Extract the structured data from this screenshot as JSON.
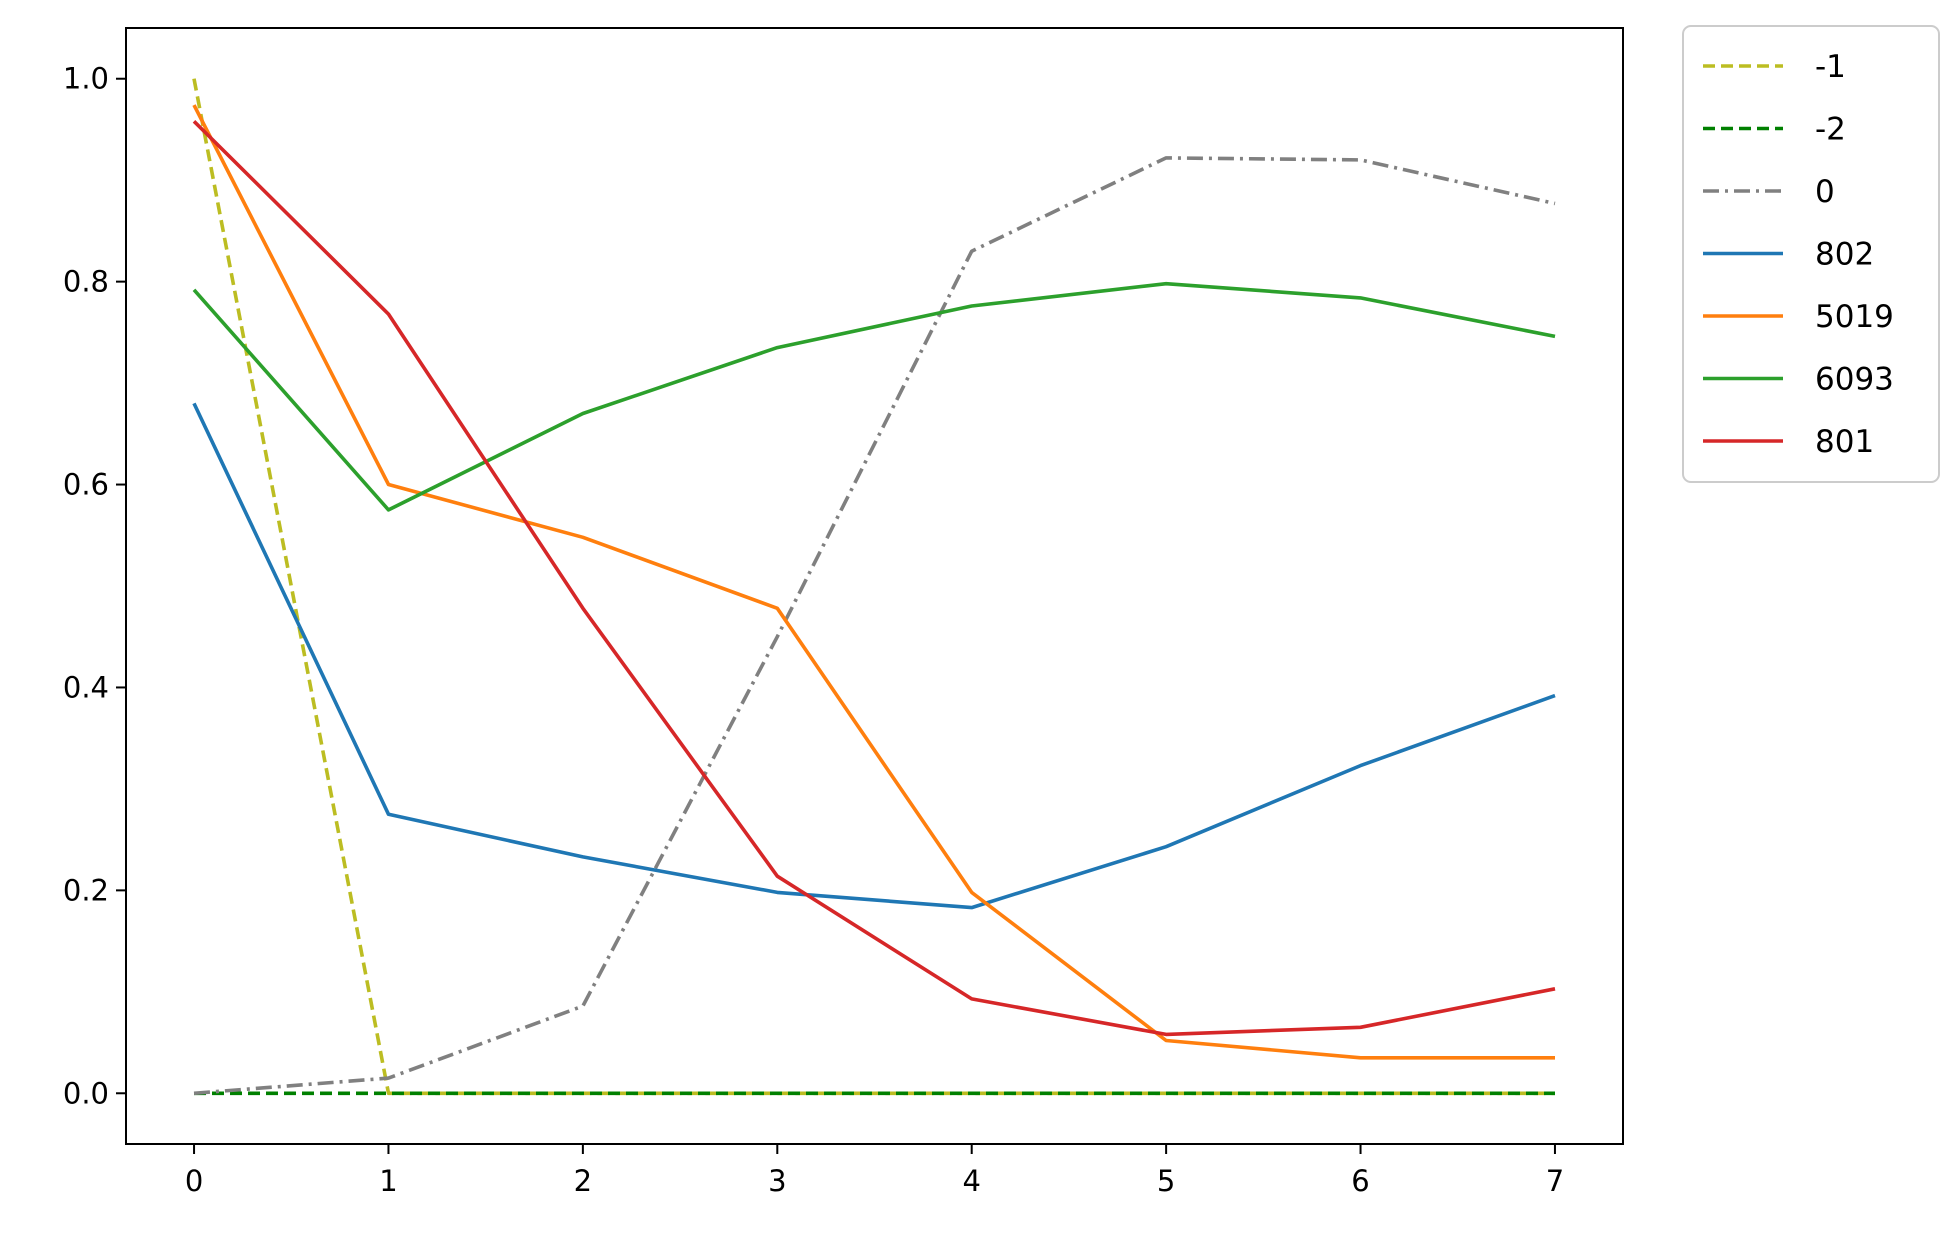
{
  "chart_data": {
    "type": "line",
    "title": "",
    "xlabel": "",
    "ylabel": "",
    "x": [
      0,
      1,
      2,
      3,
      4,
      5,
      6,
      7
    ],
    "xlim": [
      -0.35,
      7.35
    ],
    "ylim": [
      -0.05,
      1.05
    ],
    "xticks": [
      0,
      1,
      2,
      3,
      4,
      5,
      6,
      7
    ],
    "yticks": [
      0.0,
      0.2,
      0.4,
      0.6,
      0.8,
      1.0
    ],
    "ytick_labels": [
      "0.0",
      "0.2",
      "0.4",
      "0.6",
      "0.8",
      "1.0"
    ],
    "grid": false,
    "legend_position": "outside-top-right",
    "series": [
      {
        "name": "-1",
        "color": "#bcbd22",
        "style": "dashed",
        "values": [
          1.0,
          0.0,
          0.0,
          0.0,
          0.0,
          0.0,
          0.0,
          0.0
        ]
      },
      {
        "name": "-2",
        "color": "#008000",
        "style": "dashed",
        "values": [
          0.0,
          0.0,
          0.0,
          0.0,
          0.0,
          0.0,
          0.0,
          0.0
        ]
      },
      {
        "name": "0",
        "color": "#808080",
        "style": "dashdot",
        "values": [
          0.0,
          0.015,
          0.086,
          0.45,
          0.83,
          0.922,
          0.92,
          0.877
        ]
      },
      {
        "name": "802",
        "color": "#1f77b4",
        "style": "solid",
        "values": [
          0.68,
          0.275,
          0.233,
          0.198,
          0.183,
          0.243,
          0.323,
          0.392
        ]
      },
      {
        "name": "5019",
        "color": "#ff7f0e",
        "style": "solid",
        "values": [
          0.974,
          0.6,
          0.548,
          0.478,
          0.198,
          0.052,
          0.035,
          0.035
        ]
      },
      {
        "name": "6093",
        "color": "#2ca02c",
        "style": "solid",
        "values": [
          0.792,
          0.575,
          0.67,
          0.735,
          0.776,
          0.798,
          0.784,
          0.746
        ]
      },
      {
        "name": "801",
        "color": "#d62728",
        "style": "solid",
        "values": [
          0.958,
          0.768,
          0.478,
          0.214,
          0.093,
          0.058,
          0.065,
          0.103
        ]
      }
    ]
  }
}
